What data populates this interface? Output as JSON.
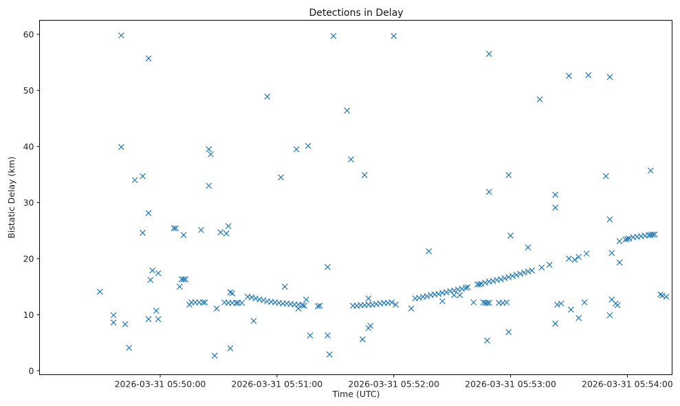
{
  "chart_data": {
    "type": "scatter",
    "title": "Detections in Delay",
    "xlabel": "Time (UTC)",
    "ylabel": "Bistatic Delay (km)",
    "marker": "x",
    "color": "#1f77b4",
    "grid": false,
    "xlim": [
      "2026-03-31 05:48:58",
      "2026-03-31 05:54:23"
    ],
    "ylim": [
      -0.7,
      62.5
    ],
    "x_ticks": [
      {
        "value": "2026-03-31 05:50:00",
        "label": "2026-03-31 05:50:00"
      },
      {
        "value": "2026-03-31 05:51:00",
        "label": "2026-03-31 05:51:00"
      },
      {
        "value": "2026-03-31 05:52:00",
        "label": "2026-03-31 05:52:00"
      },
      {
        "value": "2026-03-31 05:53:00",
        "label": "2026-03-31 05:53:00"
      },
      {
        "value": "2026-03-31 05:54:00",
        "label": "2026-03-31 05:54:00"
      }
    ],
    "y_ticks": [
      {
        "value": 0,
        "label": "0"
      },
      {
        "value": 10,
        "label": "10"
      },
      {
        "value": 20,
        "label": "20"
      },
      {
        "value": 30,
        "label": "30"
      },
      {
        "value": 40,
        "label": "40"
      },
      {
        "value": 50,
        "label": "50"
      },
      {
        "value": 60,
        "label": "60"
      }
    ],
    "series": [
      {
        "points": [
          [
            "2026-03-31 05:49:29",
            14.1
          ],
          [
            "2026-03-31 05:49:36",
            9.9
          ],
          [
            "2026-03-31 05:49:36",
            8.6
          ],
          [
            "2026-03-31 05:49:40",
            59.8
          ],
          [
            "2026-03-31 05:49:40",
            39.9
          ],
          [
            "2026-03-31 05:49:42",
            8.3
          ],
          [
            "2026-03-31 05:49:44",
            4.1
          ],
          [
            "2026-03-31 05:49:47",
            34.0
          ],
          [
            "2026-03-31 05:49:51",
            34.7
          ],
          [
            "2026-03-31 05:49:51",
            24.6
          ],
          [
            "2026-03-31 05:49:54",
            55.7
          ],
          [
            "2026-03-31 05:49:54",
            28.1
          ],
          [
            "2026-03-31 05:49:54",
            9.2
          ],
          [
            "2026-03-31 05:49:55",
            16.2
          ],
          [
            "2026-03-31 05:49:56",
            17.9
          ],
          [
            "2026-03-31 05:49:58",
            10.7
          ],
          [
            "2026-03-31 05:49:59",
            17.4
          ],
          [
            "2026-03-31 05:49:59",
            9.2
          ],
          [
            "2026-03-31 05:50:07",
            25.4
          ],
          [
            "2026-03-31 05:50:08",
            25.4
          ],
          [
            "2026-03-31 05:50:10",
            15.0
          ],
          [
            "2026-03-31 05:50:11",
            16.3
          ],
          [
            "2026-03-31 05:50:12",
            24.2
          ],
          [
            "2026-03-31 05:50:12",
            16.3
          ],
          [
            "2026-03-31 05:50:13",
            16.3
          ],
          [
            "2026-03-31 05:50:15",
            11.8
          ],
          [
            "2026-03-31 05:50:16",
            12.2
          ],
          [
            "2026-03-31 05:50:18",
            12.2
          ],
          [
            "2026-03-31 05:50:20",
            12.2
          ],
          [
            "2026-03-31 05:50:21",
            25.1
          ],
          [
            "2026-03-31 05:50:22",
            12.2
          ],
          [
            "2026-03-31 05:50:23",
            12.2
          ],
          [
            "2026-03-31 05:50:25",
            39.5
          ],
          [
            "2026-03-31 05:50:25",
            33.0
          ],
          [
            "2026-03-31 05:50:26",
            38.6
          ],
          [
            "2026-03-31 05:50:28",
            2.7
          ],
          [
            "2026-03-31 05:50:29",
            11.1
          ],
          [
            "2026-03-31 05:50:31",
            24.7
          ],
          [
            "2026-03-31 05:50:33",
            12.2
          ],
          [
            "2026-03-31 05:50:34",
            24.5
          ],
          [
            "2026-03-31 05:50:35",
            25.8
          ],
          [
            "2026-03-31 05:50:35",
            12.1
          ],
          [
            "2026-03-31 05:50:36",
            4.0
          ],
          [
            "2026-03-31 05:50:36",
            14.0
          ],
          [
            "2026-03-31 05:50:37",
            13.8
          ],
          [
            "2026-03-31 05:50:37",
            12.1
          ],
          [
            "2026-03-31 05:50:39",
            12.1
          ],
          [
            "2026-03-31 05:50:40",
            12.1
          ],
          [
            "2026-03-31 05:50:42",
            12.1
          ],
          [
            "2026-03-31 05:50:45",
            13.2
          ],
          [
            "2026-03-31 05:50:47",
            13.1
          ],
          [
            "2026-03-31 05:50:48",
            8.9
          ],
          [
            "2026-03-31 05:50:49",
            12.9
          ],
          [
            "2026-03-31 05:50:51",
            12.7
          ],
          [
            "2026-03-31 05:50:53",
            12.6
          ],
          [
            "2026-03-31 05:50:55",
            12.4
          ],
          [
            "2026-03-31 05:50:55",
            48.9
          ],
          [
            "2026-03-31 05:50:57",
            12.3
          ],
          [
            "2026-03-31 05:50:59",
            12.2
          ],
          [
            "2026-03-31 05:51:01",
            12.1
          ],
          [
            "2026-03-31 05:51:02",
            34.5
          ],
          [
            "2026-03-31 05:51:03",
            12.0
          ],
          [
            "2026-03-31 05:51:04",
            15.0
          ],
          [
            "2026-03-31 05:51:05",
            12.0
          ],
          [
            "2026-03-31 05:51:07",
            11.9
          ],
          [
            "2026-03-31 05:51:09",
            11.8
          ],
          [
            "2026-03-31 05:51:10",
            39.5
          ],
          [
            "2026-03-31 05:51:11",
            11.8
          ],
          [
            "2026-03-31 05:51:11",
            11.1
          ],
          [
            "2026-03-31 05:51:13",
            11.7
          ],
          [
            "2026-03-31 05:51:14",
            11.6
          ],
          [
            "2026-03-31 05:51:15",
            12.7
          ],
          [
            "2026-03-31 05:51:16",
            40.1
          ],
          [
            "2026-03-31 05:51:17",
            6.3
          ],
          [
            "2026-03-31 05:51:21",
            11.5
          ],
          [
            "2026-03-31 05:51:22",
            11.6
          ],
          [
            "2026-03-31 05:51:26",
            6.3
          ],
          [
            "2026-03-31 05:51:26",
            18.5
          ],
          [
            "2026-03-31 05:51:27",
            2.9
          ],
          [
            "2026-03-31 05:51:29",
            59.7
          ],
          [
            "2026-03-31 05:51:36",
            46.4
          ],
          [
            "2026-03-31 05:51:38",
            37.7
          ],
          [
            "2026-03-31 05:51:39",
            11.6
          ],
          [
            "2026-03-31 05:51:41",
            11.6
          ],
          [
            "2026-03-31 05:51:43",
            11.7
          ],
          [
            "2026-03-31 05:51:44",
            5.6
          ],
          [
            "2026-03-31 05:51:45",
            34.9
          ],
          [
            "2026-03-31 05:51:45",
            11.7
          ],
          [
            "2026-03-31 05:51:47",
            11.8
          ],
          [
            "2026-03-31 05:51:47",
            12.9
          ],
          [
            "2026-03-31 05:51:47",
            7.6
          ],
          [
            "2026-03-31 05:51:48",
            8.0
          ],
          [
            "2026-03-31 05:51:49",
            11.8
          ],
          [
            "2026-03-31 05:51:51",
            11.9
          ],
          [
            "2026-03-31 05:51:53",
            12.0
          ],
          [
            "2026-03-31 05:51:55",
            12.1
          ],
          [
            "2026-03-31 05:51:57",
            12.1
          ],
          [
            "2026-03-31 05:51:59",
            12.2
          ],
          [
            "2026-03-31 05:52:00",
            59.7
          ],
          [
            "2026-03-31 05:52:01",
            11.8
          ],
          [
            "2026-03-31 05:52:09",
            11.1
          ],
          [
            "2026-03-31 05:52:11",
            12.9
          ],
          [
            "2026-03-31 05:52:13",
            13.0
          ],
          [
            "2026-03-31 05:52:15",
            13.2
          ],
          [
            "2026-03-31 05:52:17",
            13.3
          ],
          [
            "2026-03-31 05:52:18",
            21.3
          ],
          [
            "2026-03-31 05:52:19",
            13.5
          ],
          [
            "2026-03-31 05:52:21",
            13.6
          ],
          [
            "2026-03-31 05:52:23",
            13.7
          ],
          [
            "2026-03-31 05:52:25",
            13.9
          ],
          [
            "2026-03-31 05:52:25",
            12.4
          ],
          [
            "2026-03-31 05:52:27",
            14.0
          ],
          [
            "2026-03-31 05:52:29",
            14.2
          ],
          [
            "2026-03-31 05:52:31",
            14.3
          ],
          [
            "2026-03-31 05:52:31",
            13.5
          ],
          [
            "2026-03-31 05:52:33",
            14.5
          ],
          [
            "2026-03-31 05:52:34",
            13.5
          ],
          [
            "2026-03-31 05:52:35",
            14.6
          ],
          [
            "2026-03-31 05:52:37",
            14.8
          ],
          [
            "2026-03-31 05:52:38",
            14.9
          ],
          [
            "2026-03-31 05:52:41",
            12.2
          ],
          [
            "2026-03-31 05:52:43",
            15.4
          ],
          [
            "2026-03-31 05:52:44",
            15.4
          ],
          [
            "2026-03-31 05:52:45",
            15.5
          ],
          [
            "2026-03-31 05:52:46",
            12.2
          ],
          [
            "2026-03-31 05:52:47",
            15.7
          ],
          [
            "2026-03-31 05:52:47",
            12.1
          ],
          [
            "2026-03-31 05:52:48",
            12.1
          ],
          [
            "2026-03-31 05:52:48",
            5.4
          ],
          [
            "2026-03-31 05:52:49",
            15.9
          ],
          [
            "2026-03-31 05:52:49",
            56.5
          ],
          [
            "2026-03-31 05:52:49",
            31.9
          ],
          [
            "2026-03-31 05:52:49",
            12.1
          ],
          [
            "2026-03-31 05:52:51",
            16.0
          ],
          [
            "2026-03-31 05:52:53",
            16.2
          ],
          [
            "2026-03-31 05:52:54",
            12.1
          ],
          [
            "2026-03-31 05:52:55",
            16.3
          ],
          [
            "2026-03-31 05:52:56",
            12.1
          ],
          [
            "2026-03-31 05:52:57",
            16.5
          ],
          [
            "2026-03-31 05:52:58",
            12.2
          ],
          [
            "2026-03-31 05:52:59",
            34.9
          ],
          [
            "2026-03-31 05:52:59",
            16.7
          ],
          [
            "2026-03-31 05:52:59",
            6.9
          ],
          [
            "2026-03-31 05:53:00",
            24.1
          ],
          [
            "2026-03-31 05:53:01",
            16.9
          ],
          [
            "2026-03-31 05:53:03",
            17.1
          ],
          [
            "2026-03-31 05:53:05",
            17.3
          ],
          [
            "2026-03-31 05:53:07",
            17.5
          ],
          [
            "2026-03-31 05:53:09",
            17.7
          ],
          [
            "2026-03-31 05:53:09",
            22.0
          ],
          [
            "2026-03-31 05:53:11",
            17.9
          ],
          [
            "2026-03-31 05:53:15",
            48.4
          ],
          [
            "2026-03-31 05:53:16",
            18.4
          ],
          [
            "2026-03-31 05:53:20",
            18.9
          ],
          [
            "2026-03-31 05:53:23",
            31.4
          ],
          [
            "2026-03-31 05:53:23",
            29.1
          ],
          [
            "2026-03-31 05:53:23",
            8.4
          ],
          [
            "2026-03-31 05:53:24",
            11.8
          ],
          [
            "2026-03-31 05:53:26",
            12.0
          ],
          [
            "2026-03-31 05:53:30",
            20.0
          ],
          [
            "2026-03-31 05:53:30",
            52.6
          ],
          [
            "2026-03-31 05:53:31",
            10.9
          ],
          [
            "2026-03-31 05:53:33",
            19.8
          ],
          [
            "2026-03-31 05:53:35",
            20.3
          ],
          [
            "2026-03-31 05:53:35",
            9.4
          ],
          [
            "2026-03-31 05:53:38",
            12.2
          ],
          [
            "2026-03-31 05:53:39",
            20.9
          ],
          [
            "2026-03-31 05:53:40",
            52.7
          ],
          [
            "2026-03-31 05:53:49",
            34.7
          ],
          [
            "2026-03-31 05:53:51",
            52.4
          ],
          [
            "2026-03-31 05:53:51",
            27.0
          ],
          [
            "2026-03-31 05:53:51",
            9.9
          ],
          [
            "2026-03-31 05:53:52",
            21.0
          ],
          [
            "2026-03-31 05:53:52",
            12.7
          ],
          [
            "2026-03-31 05:53:54",
            12.0
          ],
          [
            "2026-03-31 05:53:55",
            11.7
          ],
          [
            "2026-03-31 05:53:56",
            23.1
          ],
          [
            "2026-03-31 05:53:56",
            19.3
          ],
          [
            "2026-03-31 05:53:59",
            23.4
          ],
          [
            "2026-03-31 05:54:00",
            23.5
          ],
          [
            "2026-03-31 05:54:01",
            23.6
          ],
          [
            "2026-03-31 05:54:03",
            23.8
          ],
          [
            "2026-03-31 05:54:05",
            23.9
          ],
          [
            "2026-03-31 05:54:07",
            24.0
          ],
          [
            "2026-03-31 05:54:09",
            24.1
          ],
          [
            "2026-03-31 05:54:11",
            24.2
          ],
          [
            "2026-03-31 05:54:12",
            35.7
          ],
          [
            "2026-03-31 05:54:12",
            24.2
          ],
          [
            "2026-03-31 05:54:13",
            24.3
          ],
          [
            "2026-03-31 05:54:14",
            24.3
          ],
          [
            "2026-03-31 05:54:17",
            13.6
          ],
          [
            "2026-03-31 05:54:18",
            13.4
          ],
          [
            "2026-03-31 05:54:20",
            13.2
          ]
        ]
      }
    ]
  }
}
